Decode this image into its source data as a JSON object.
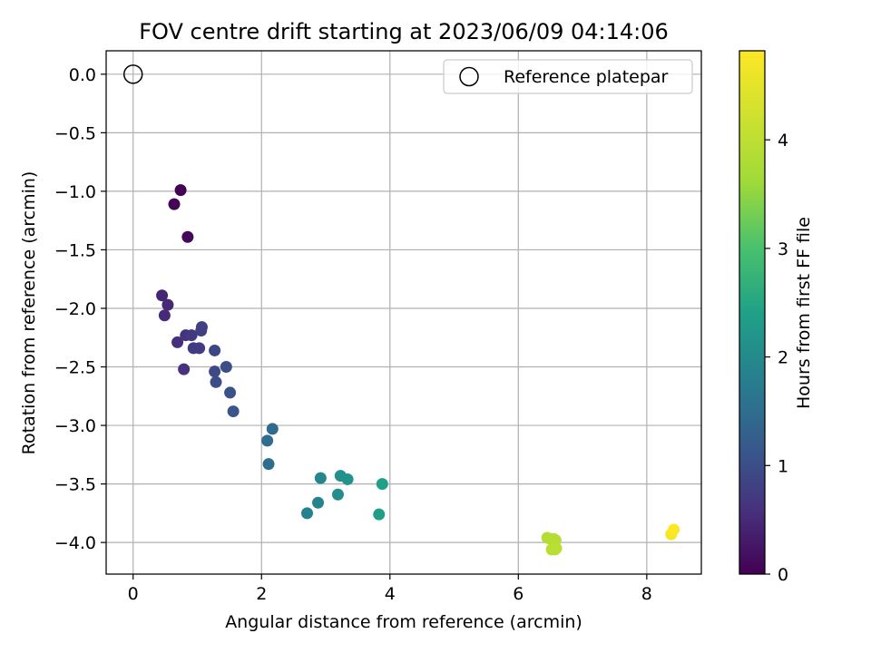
{
  "chart_data": {
    "type": "scatter",
    "title": "FOV centre drift starting at 2023/06/09 04:14:06",
    "xlabel": "Angular distance from reference (arcmin)",
    "ylabel": "Rotation from reference (arcmin)",
    "xlim": [
      -0.42,
      8.85
    ],
    "ylim": [
      -4.27,
      0.2
    ],
    "xticks": [
      0,
      2,
      4,
      6,
      8
    ],
    "xtick_labels": [
      "0",
      "2",
      "4",
      "6",
      "8"
    ],
    "yticks": [
      0.0,
      -0.5,
      -1.0,
      -1.5,
      -2.0,
      -2.5,
      -3.0,
      -3.5,
      -4.0
    ],
    "ytick_labels": [
      "0.0",
      "−0.5",
      "−1.0",
      "−1.5",
      "−2.0",
      "−2.5",
      "−3.0",
      "−3.5",
      "−4.0"
    ],
    "grid": true,
    "legend": {
      "placement": "top-right",
      "entries": [
        "Reference platepar"
      ]
    },
    "reference_point": {
      "x": 0.0,
      "y": 0.0
    },
    "colorbar": {
      "label": "Hours from first FF file",
      "colormap": "viridis",
      "range": [
        0,
        4.82
      ],
      "ticks": [
        0,
        1,
        2,
        3,
        4
      ],
      "tick_labels": [
        "0",
        "1",
        "2",
        "3",
        "4"
      ]
    },
    "points": [
      {
        "x": 0.74,
        "y": -0.99,
        "h": 0.0
      },
      {
        "x": 0.64,
        "y": -1.11,
        "h": 0.05
      },
      {
        "x": 0.85,
        "y": -1.39,
        "h": 0.1
      },
      {
        "x": 0.45,
        "y": -1.89,
        "h": 0.45
      },
      {
        "x": 0.54,
        "y": -1.97,
        "h": 0.48
      },
      {
        "x": 0.49,
        "y": -2.06,
        "h": 0.5
      },
      {
        "x": 0.69,
        "y": -2.29,
        "h": 0.58
      },
      {
        "x": 0.82,
        "y": -2.23,
        "h": 0.62
      },
      {
        "x": 0.79,
        "y": -2.52,
        "h": 0.6
      },
      {
        "x": 0.91,
        "y": -2.23,
        "h": 0.7
      },
      {
        "x": 0.94,
        "y": -2.34,
        "h": 0.72
      },
      {
        "x": 1.03,
        "y": -2.34,
        "h": 0.75
      },
      {
        "x": 1.06,
        "y": -2.19,
        "h": 0.78
      },
      {
        "x": 1.07,
        "y": -2.16,
        "h": 0.8
      },
      {
        "x": 1.27,
        "y": -2.36,
        "h": 0.9
      },
      {
        "x": 1.27,
        "y": -2.54,
        "h": 0.95
      },
      {
        "x": 1.29,
        "y": -2.63,
        "h": 0.97
      },
      {
        "x": 1.45,
        "y": -2.5,
        "h": 1.0
      },
      {
        "x": 1.51,
        "y": -2.72,
        "h": 1.05
      },
      {
        "x": 1.56,
        "y": -2.88,
        "h": 1.1
      },
      {
        "x": 2.17,
        "y": -3.03,
        "h": 1.45
      },
      {
        "x": 2.09,
        "y": -3.13,
        "h": 1.48
      },
      {
        "x": 2.11,
        "y": -3.33,
        "h": 1.5
      },
      {
        "x": 2.71,
        "y": -3.75,
        "h": 1.85
      },
      {
        "x": 2.88,
        "y": -3.66,
        "h": 1.9
      },
      {
        "x": 2.92,
        "y": -3.45,
        "h": 1.95
      },
      {
        "x": 3.19,
        "y": -3.59,
        "h": 2.05
      },
      {
        "x": 3.23,
        "y": -3.43,
        "h": 2.1
      },
      {
        "x": 3.34,
        "y": -3.46,
        "h": 2.15
      },
      {
        "x": 3.83,
        "y": -3.76,
        "h": 2.35
      },
      {
        "x": 3.88,
        "y": -3.5,
        "h": 2.4
      },
      {
        "x": 6.45,
        "y": -3.96,
        "h": 3.85
      },
      {
        "x": 6.5,
        "y": -3.97,
        "h": 3.87
      },
      {
        "x": 6.55,
        "y": -3.97,
        "h": 3.88
      },
      {
        "x": 6.58,
        "y": -3.98,
        "h": 3.9
      },
      {
        "x": 6.52,
        "y": -4.06,
        "h": 3.92
      },
      {
        "x": 6.57,
        "y": -4.06,
        "h": 3.94
      },
      {
        "x": 6.59,
        "y": -4.05,
        "h": 3.95
      },
      {
        "x": 8.38,
        "y": -3.93,
        "h": 4.75
      },
      {
        "x": 8.42,
        "y": -3.89,
        "h": 4.8
      }
    ]
  }
}
